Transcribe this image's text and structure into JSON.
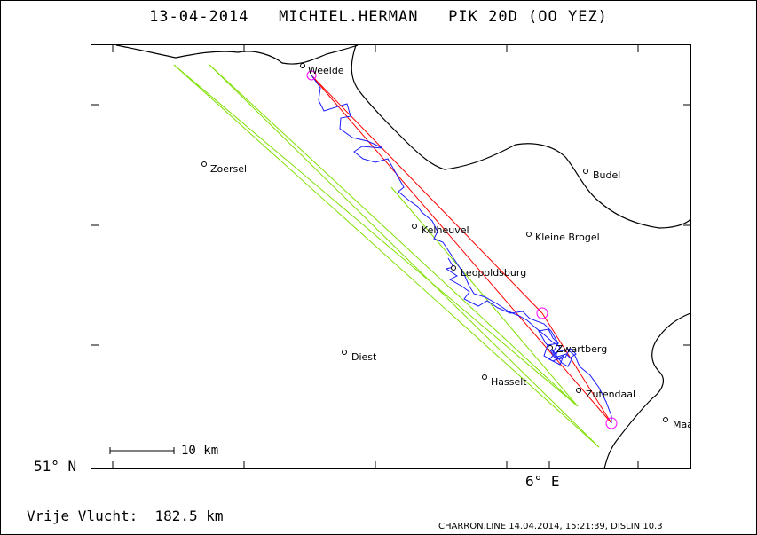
{
  "header": {
    "date": "13-04-2014",
    "pilot": "MICHIEL.HERMAN",
    "glider": "PIK 20D (OO YEZ)"
  },
  "axes": {
    "lat_label": "51° N",
    "lon_label": "6° E"
  },
  "scale": {
    "label": "10 km"
  },
  "flight": {
    "distance_label": "Vrije Vlucht:",
    "distance_value": "182.5 km"
  },
  "footer": {
    "credit": "CHARRON.LINE 14.04.2014, 15:21:39, DISLIN 10.3"
  },
  "cities": [
    {
      "name": "Weelde"
    },
    {
      "name": "Zoersel"
    },
    {
      "name": "Budel"
    },
    {
      "name": "Kelheuvel"
    },
    {
      "name": "Kleine Brogel"
    },
    {
      "name": "Leopoldsburg"
    },
    {
      "name": "Zwartberg"
    },
    {
      "name": "Diest"
    },
    {
      "name": "Hasselt"
    },
    {
      "name": "Zutendaal"
    },
    {
      "name": "Maastricht"
    }
  ],
  "colors": {
    "border": "#000000",
    "track": "#1a1aff",
    "task_line": "#ff0000",
    "turnpoint": "#ff00ff",
    "wind_lines": "#7fe000"
  }
}
